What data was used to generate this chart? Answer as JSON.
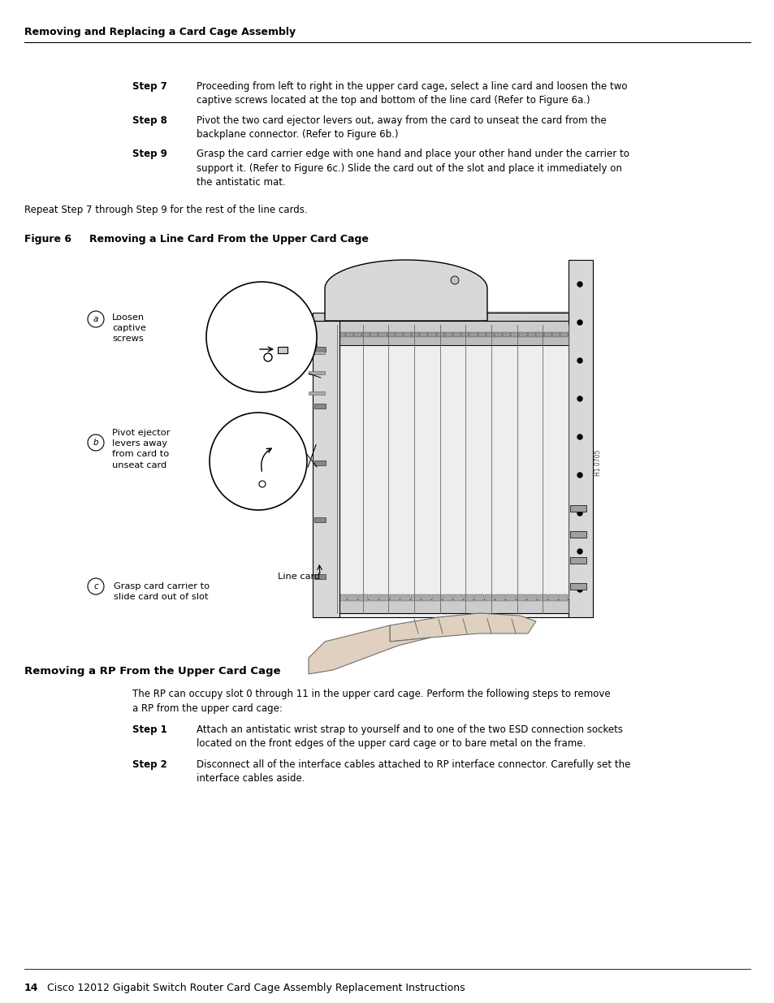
{
  "bg_color": "#ffffff",
  "header_text": "Removing and Replacing a Card Cage Assembly",
  "step7_label": "Step 7",
  "step7_text": "Proceeding from left to right in the upper card cage, select a line card and loosen the two\ncaptive screws located at the top and bottom of the line card (Refer to Figure 6a.)",
  "step8_label": "Step 8",
  "step8_text": "Pivot the two card ejector levers out, away from the card to unseat the card from the\nbackplane connector. (Refer to Figure 6b.)",
  "step9_label": "Step 9",
  "step9_text": "Grasp the card carrier edge with one hand and place your other hand under the carrier to\nsupport it. (Refer to Figure 6c.) Slide the card out of the slot and place it immediately on\nthe antistatic mat.",
  "repeat_text": "Repeat Step 7 through Step 9 for the rest of the line cards.",
  "figure_label": "Figure 6",
  "figure_title": "Removing a Line Card From the Upper Card Cage",
  "section_title": "Removing a RP From the Upper Card Cage",
  "rp_intro": "The RP can occupy slot 0 through 11 in the upper card cage. Perform the following steps to remove\na RP from the upper card cage:",
  "step1_label": "Step 1",
  "step1_text": "Attach an antistatic wrist strap to yourself and to one of the two ESD connection sockets\nlocated on the front edges of the upper card cage or to bare metal on the frame.",
  "step2_label": "Step 2",
  "step2_text": "Disconnect all of the interface cables attached to RP interface connector. Carefully set the\ninterface cables aside.",
  "footer_page": "14",
  "footer_text": "Cisco 12012 Gigabit Switch Router Card Cage Assembly Replacement Instructions",
  "label_a": "a",
  "label_b": "b",
  "label_c": "c",
  "ann_a": "Loosen\ncaptive\nscrews",
  "ann_b": "Pivot ejector\nlevers away\nfrom card to\nunseat card",
  "ann_c": "Grasp card carrier to\nslide card out of slot",
  "ann_linecard": "Line card"
}
